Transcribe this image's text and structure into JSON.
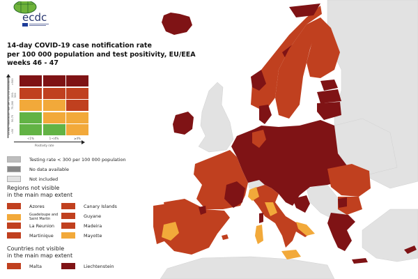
{
  "logo": {
    "text": "ecdc",
    "subtext": "EUROPEAN CENTRE FOR DISEASE PREVENTION AND CONTROL"
  },
  "title": {
    "line1": "14-day COVID-19 case notification rate",
    "line2": "per 100 000 population and test positivity, EU/EEA",
    "line3": "weeks 46 - 47"
  },
  "colors": {
    "dark_red": "#7f1315",
    "red": "#c0401f",
    "orange": "#f2a93a",
    "green": "#62b345",
    "grey_testing": "#bdbdbd",
    "grey_nodata": "#888888",
    "grey_notincluded": "#e2e2e2",
    "sea": "#ffffff"
  },
  "matrix": {
    "y_axis_label": "14-day notification rate per 100 000 population",
    "y_ticks": [
      ">500",
      "200-500",
      "75-200",
      "50-75",
      "<50"
    ],
    "x_axis_label": "Positivity rate",
    "x_ticks": [
      "<1%",
      "1-<4%",
      "≥4%"
    ],
    "rows": [
      [
        "dark_red",
        "dark_red",
        "dark_red"
      ],
      [
        "red",
        "red",
        "red"
      ],
      [
        "orange",
        "orange",
        "red"
      ],
      [
        "green",
        "orange",
        "orange"
      ],
      [
        "green",
        "green",
        "orange"
      ]
    ]
  },
  "legend": {
    "testing_rate": "Testing rate < 300 per 100 000 population",
    "no_data": "No data available",
    "not_included": "Not included"
  },
  "regions_section": {
    "title_line1": "Regions not visible",
    "title_line2": "in the main map extent",
    "items": [
      {
        "label": "Azores",
        "color": "red"
      },
      {
        "label": "Canary Islands",
        "color": "red"
      },
      {
        "label": "Guadeloupe and Saint Martin",
        "color": "orange"
      },
      {
        "label": "Guyane",
        "color": "red"
      },
      {
        "label": "La Reunion",
        "color": "red"
      },
      {
        "label": "Madeira",
        "color": "red"
      },
      {
        "label": "Martinique",
        "color": "red"
      },
      {
        "label": "Mayotte",
        "color": "orange"
      }
    ]
  },
  "countries_section": {
    "title_line1": "Countries not visible",
    "title_line2": "in the main map extent",
    "items": [
      {
        "label": "Malta",
        "color": "red"
      },
      {
        "label": "Liechtenstein",
        "color": "dark_red"
      }
    ]
  },
  "map_regions": [
    {
      "name": "Iceland",
      "color": "dark_red"
    },
    {
      "name": "Ireland",
      "color": "dark_red"
    },
    {
      "name": "United Kingdom",
      "color": "not_included"
    },
    {
      "name": "Norway",
      "color": "red"
    },
    {
      "name": "Sweden",
      "color": "red"
    },
    {
      "name": "Finland",
      "color": "red"
    },
    {
      "name": "Estonia",
      "color": "dark_red"
    },
    {
      "name": "Latvia",
      "color": "dark_red"
    },
    {
      "name": "Lithuania",
      "color": "dark_red"
    },
    {
      "name": "Denmark",
      "color": "dark_red"
    },
    {
      "name": "Netherlands",
      "color": "dark_red"
    },
    {
      "name": "Belgium",
      "color": "dark_red"
    },
    {
      "name": "Germany",
      "color": "dark_red"
    },
    {
      "name": "Poland",
      "color": "dark_red"
    },
    {
      "name": "Czechia",
      "color": "dark_red"
    },
    {
      "name": "Slovakia",
      "color": "dark_red"
    },
    {
      "name": "Austria",
      "color": "dark_red"
    },
    {
      "name": "Hungary",
      "color": "dark_red"
    },
    {
      "name": "Slovenia",
      "color": "dark_red"
    },
    {
      "name": "Croatia",
      "color": "dark_red"
    },
    {
      "name": "France",
      "color": "red"
    },
    {
      "name": "Spain",
      "color": "red"
    },
    {
      "name": "Portugal",
      "color": "red"
    },
    {
      "name": "Italy",
      "color": "red"
    },
    {
      "name": "Switzerland",
      "color": "not_included"
    },
    {
      "name": "Romania",
      "color": "red"
    },
    {
      "name": "Bulgaria",
      "color": "red"
    },
    {
      "name": "Greece",
      "color": "dark_red"
    },
    {
      "name": "Cyprus",
      "color": "dark_red"
    }
  ]
}
